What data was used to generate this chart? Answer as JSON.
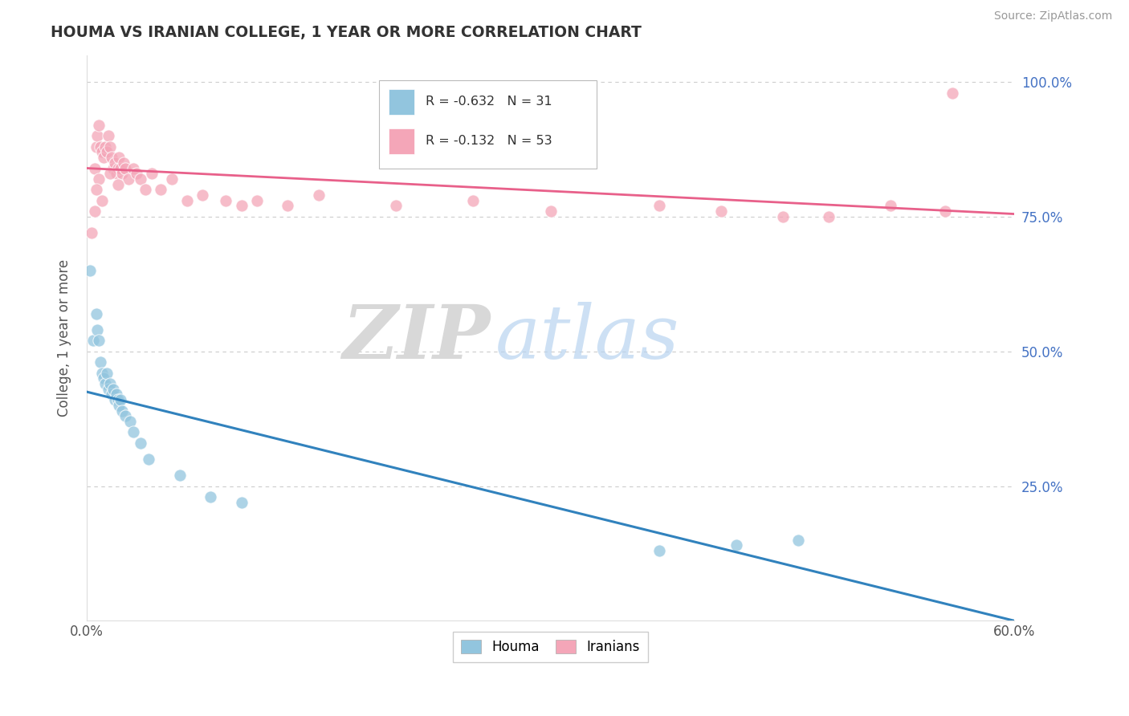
{
  "title": "HOUMA VS IRANIAN COLLEGE, 1 YEAR OR MORE CORRELATION CHART",
  "source": "Source: ZipAtlas.com",
  "ylabel": "College, 1 year or more",
  "xlim": [
    0.0,
    0.6
  ],
  "ylim": [
    0.0,
    1.05
  ],
  "legend_blue_r": "-0.632",
  "legend_blue_n": "31",
  "legend_pink_r": "-0.132",
  "legend_pink_n": "53",
  "blue_color": "#92c5de",
  "pink_color": "#f4a6b8",
  "blue_line_color": "#3182bd",
  "pink_line_color": "#e8608a",
  "watermark_zip": "ZIP",
  "watermark_atlas": "atlas",
  "grid_color": "#cccccc",
  "background_color": "#ffffff",
  "houma_x": [
    0.002,
    0.004,
    0.006,
    0.007,
    0.008,
    0.009,
    0.01,
    0.011,
    0.012,
    0.013,
    0.014,
    0.015,
    0.016,
    0.017,
    0.018,
    0.019,
    0.02,
    0.021,
    0.022,
    0.023,
    0.025,
    0.028,
    0.03,
    0.035,
    0.04,
    0.06,
    0.08,
    0.1,
    0.37,
    0.42,
    0.46
  ],
  "houma_y": [
    0.65,
    0.52,
    0.57,
    0.54,
    0.52,
    0.48,
    0.46,
    0.45,
    0.44,
    0.46,
    0.43,
    0.44,
    0.42,
    0.43,
    0.41,
    0.42,
    0.41,
    0.4,
    0.41,
    0.39,
    0.38,
    0.37,
    0.35,
    0.33,
    0.3,
    0.27,
    0.23,
    0.22,
    0.13,
    0.14,
    0.15
  ],
  "iranian_x": [
    0.003,
    0.005,
    0.006,
    0.007,
    0.008,
    0.009,
    0.01,
    0.011,
    0.012,
    0.013,
    0.014,
    0.015,
    0.016,
    0.017,
    0.018,
    0.019,
    0.02,
    0.021,
    0.022,
    0.023,
    0.024,
    0.025,
    0.027,
    0.03,
    0.032,
    0.035,
    0.038,
    0.042,
    0.048,
    0.055,
    0.065,
    0.075,
    0.09,
    0.1,
    0.11,
    0.13,
    0.15,
    0.2,
    0.25,
    0.3,
    0.37,
    0.41,
    0.45,
    0.48,
    0.52,
    0.555,
    0.005,
    0.008,
    0.006,
    0.01,
    0.015,
    0.02,
    0.56
  ],
  "iranian_y": [
    0.72,
    0.84,
    0.88,
    0.9,
    0.92,
    0.88,
    0.87,
    0.86,
    0.88,
    0.87,
    0.9,
    0.88,
    0.86,
    0.84,
    0.85,
    0.83,
    0.84,
    0.86,
    0.84,
    0.83,
    0.85,
    0.84,
    0.82,
    0.84,
    0.83,
    0.82,
    0.8,
    0.83,
    0.8,
    0.82,
    0.78,
    0.79,
    0.78,
    0.77,
    0.78,
    0.77,
    0.79,
    0.77,
    0.78,
    0.76,
    0.77,
    0.76,
    0.75,
    0.75,
    0.77,
    0.76,
    0.76,
    0.82,
    0.8,
    0.78,
    0.83,
    0.81,
    0.98
  ]
}
